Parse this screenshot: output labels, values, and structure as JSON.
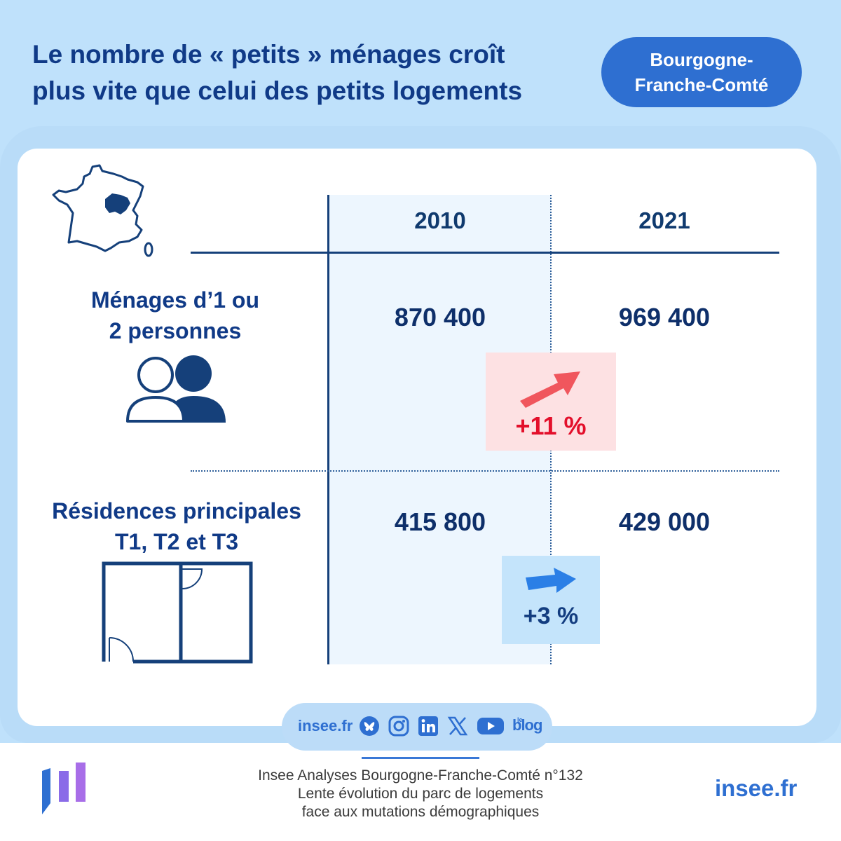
{
  "header": {
    "title_line1": "Le nombre de « petits » ménages croît",
    "title_line2": "plus vite que celui des petits logements",
    "region_line1": "Bourgogne-",
    "region_line2": "Franche-Comté"
  },
  "table": {
    "years": [
      "2010",
      "2021"
    ],
    "rows": [
      {
        "label_line1": "Ménages d’1 ou",
        "label_line2": "2 personnes",
        "icon": "two-people-icon",
        "value_2010": "870 400",
        "value_2021": "969 400",
        "change": "+11 %",
        "change_color": "#e30f2b"
      },
      {
        "label_line1": "Résidences principales",
        "label_line2": "T1, T2 et T3",
        "icon": "floor-plan-icon",
        "value_2010": "415 800",
        "value_2021": "429 000",
        "change": "+3 %",
        "change_color": "#133d80"
      }
    ]
  },
  "social": {
    "site": "insee.fr",
    "icons": [
      "bluesky-icon",
      "instagram-icon",
      "linkedin-icon",
      "x-icon",
      "youtube-icon",
      "blog-icon"
    ],
    "blog_le": "le",
    "blog": "blog"
  },
  "footer": {
    "line1": "Insee Analyses Bourgogne-Franche-Comté n°132",
    "line2": "Lente évolution du parc de logements",
    "line3": "face aux mutations démographiques",
    "brand_url": "insee.fr"
  },
  "colors": {
    "navy": "#103a87",
    "accent_blue": "#2e6fd1",
    "light_blue": "#bfe1fb",
    "red": "#e30f2b"
  }
}
